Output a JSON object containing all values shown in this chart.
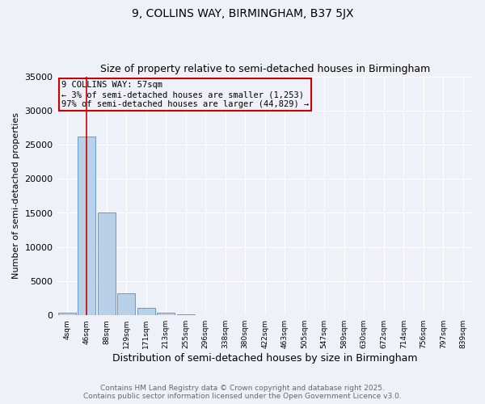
{
  "title": "9, COLLINS WAY, BIRMINGHAM, B37 5JX",
  "subtitle": "Size of property relative to semi-detached houses in Birmingham",
  "xlabel": "Distribution of semi-detached houses by size in Birmingham",
  "ylabel": "Number of semi-detached properties",
  "categories": [
    "4sqm",
    "46sqm",
    "88sqm",
    "129sqm",
    "171sqm",
    "213sqm",
    "255sqm",
    "296sqm",
    "338sqm",
    "380sqm",
    "422sqm",
    "463sqm",
    "505sqm",
    "547sqm",
    "589sqm",
    "630sqm",
    "672sqm",
    "714sqm",
    "756sqm",
    "797sqm",
    "839sqm"
  ],
  "values": [
    400,
    26200,
    15100,
    3200,
    1100,
    400,
    150,
    50,
    5,
    3,
    2,
    1,
    0,
    0,
    0,
    0,
    0,
    0,
    0,
    0,
    0
  ],
  "bar_color": "#b8d0e8",
  "bar_edge_color": "#6699cc",
  "red_line_x": 1.0,
  "ylim": [
    0,
    35000
  ],
  "yticks": [
    0,
    5000,
    10000,
    15000,
    20000,
    25000,
    30000,
    35000
  ],
  "annotation_text": "9 COLLINS WAY: 57sqm\n← 3% of semi-detached houses are smaller (1,253)\n97% of semi-detached houses are larger (44,829) →",
  "annotation_color": "#cc0000",
  "footer_line1": "Contains HM Land Registry data © Crown copyright and database right 2025.",
  "footer_line2": "Contains public sector information licensed under the Open Government Licence v3.0.",
  "background_color": "#eef2f8",
  "grid_color": "#ffffff",
  "title_fontsize": 10,
  "subtitle_fontsize": 9,
  "xlabel_fontsize": 9,
  "ylabel_fontsize": 8,
  "footer_fontsize": 6.5
}
